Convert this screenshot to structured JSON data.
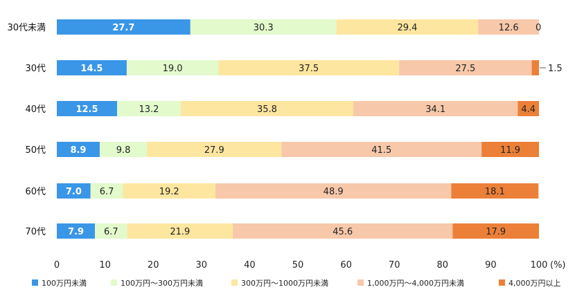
{
  "chart_data": {
    "type": "bar",
    "orientation": "horizontal",
    "stacked": true,
    "categories": [
      "30代未満",
      "30代",
      "40代",
      "50代",
      "60代",
      "70代"
    ],
    "series": [
      {
        "name": "100万円未満",
        "values": [
          27.7,
          14.5,
          12.5,
          8.9,
          7.0,
          7.9
        ],
        "color": "#3a96e6"
      },
      {
        "name": "100万円～300万円未満",
        "values": [
          30.3,
          19.0,
          13.2,
          9.8,
          6.7,
          6.7
        ],
        "color": "#e2facc"
      },
      {
        "name": "300万円～1000万円未満",
        "values": [
          29.4,
          37.5,
          35.8,
          27.9,
          19.2,
          21.9
        ],
        "color": "#fde6a0"
      },
      {
        "name": "1,000万円～4,000万円未満",
        "values": [
          12.6,
          27.5,
          34.1,
          41.5,
          48.9,
          45.6
        ],
        "color": "#f7c8aa"
      },
      {
        "name": "4,000万円以上",
        "values": [
          0,
          1.5,
          4.4,
          11.9,
          18.1,
          17.9
        ],
        "color": "#ec8038"
      }
    ],
    "x_ticks": [
      "0",
      "10",
      "20",
      "30",
      "40",
      "50",
      "60",
      "70",
      "80",
      "90",
      "100"
    ],
    "x_unit": "(%)",
    "xlim": [
      0,
      100
    ],
    "grid": false,
    "legend": "bottom",
    "label_texts": [
      [
        "27.7",
        "30.3",
        "29.4",
        "12.6",
        "0"
      ],
      [
        "14.5",
        "19.0",
        "37.5",
        "27.5",
        "1.5"
      ],
      [
        "12.5",
        "13.2",
        "35.8",
        "34.1",
        "4.4"
      ],
      [
        "8.9",
        "9.8",
        "27.9",
        "41.5",
        "11.9"
      ],
      [
        "7.0",
        "6.7",
        "19.2",
        "48.9",
        "18.1"
      ],
      [
        "7.9",
        "6.7",
        "21.9",
        "45.6",
        "17.9"
      ]
    ]
  }
}
